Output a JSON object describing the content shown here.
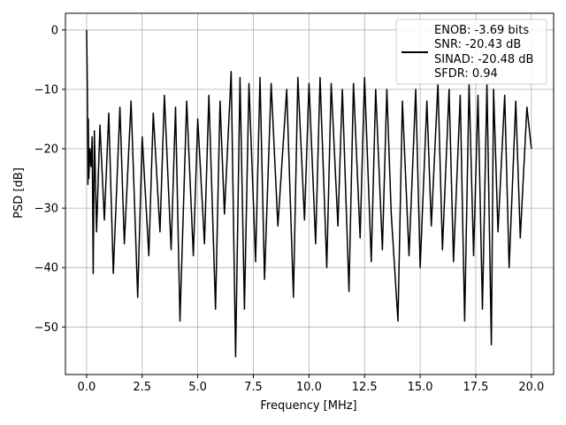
{
  "chart_data": {
    "type": "line",
    "xlabel": "Frequency [MHz]",
    "ylabel": "PSD [dB]",
    "xlim": [
      -0.95,
      21.0
    ],
    "ylim": [
      -58.0,
      2.8
    ],
    "xticks": [
      0.0,
      2.5,
      5.0,
      7.5,
      10.0,
      12.5,
      15.0,
      17.5,
      20.0
    ],
    "xtick_labels": [
      "0.0",
      "2.5",
      "5.0",
      "7.5",
      "10.0",
      "12.5",
      "15.0",
      "17.5",
      "20.0"
    ],
    "yticks": [
      0,
      -10,
      -20,
      -30,
      -40,
      -50
    ],
    "ytick_labels": [
      "0",
      "−10",
      "−20",
      "−30",
      "−40",
      "−50"
    ],
    "grid": true,
    "legend_position": "top-right",
    "legend_lines": [
      "ENOB: -3.69 bits",
      "SNR: -20.43 dB",
      "SINAD: -20.48 dB",
      "SFDR: 0.94"
    ],
    "series_color": "#000000",
    "grid_color": "#b0b0b0",
    "series": [
      {
        "x": [
          0.0,
          0.02,
          0.04,
          0.06,
          0.08,
          0.1,
          0.15,
          0.2,
          0.25,
          0.3,
          0.35,
          0.45,
          0.6,
          0.8,
          1.0,
          1.2,
          1.5,
          1.7,
          2.0,
          2.3,
          2.5,
          2.8,
          3.0,
          3.3,
          3.5,
          3.8,
          4.0,
          4.2,
          4.5,
          4.8,
          5.0,
          5.3,
          5.5,
          5.8,
          6.0,
          6.2,
          6.5,
          6.7,
          6.9,
          7.1,
          7.3,
          7.6,
          7.8,
          8.0,
          8.3,
          8.6,
          9.0,
          9.3,
          9.5,
          9.8,
          10.0,
          10.3,
          10.5,
          10.8,
          11.0,
          11.3,
          11.5,
          11.8,
          12.0,
          12.3,
          12.5,
          12.8,
          13.0,
          13.3,
          13.5,
          13.7,
          14.0,
          14.2,
          14.5,
          14.8,
          15.0,
          15.3,
          15.5,
          15.8,
          16.0,
          16.3,
          16.5,
          16.8,
          17.0,
          17.2,
          17.4,
          17.6,
          17.8,
          18.0,
          18.2,
          18.3,
          18.5,
          18.8,
          19.0,
          19.3,
          19.5,
          19.8,
          20.0
        ],
        "y": [
          0,
          -5,
          -12,
          -26,
          -15,
          -25,
          -20,
          -23,
          -18,
          -41,
          -17,
          -34,
          -16,
          -32,
          -14,
          -41,
          -13,
          -36,
          -12,
          -45,
          -18,
          -38,
          -14,
          -34,
          -11,
          -37,
          -13,
          -49,
          -12,
          -38,
          -15,
          -36,
          -11,
          -47,
          -12,
          -31,
          -7,
          -55,
          -8,
          -47,
          -9,
          -39,
          -8,
          -42,
          -9,
          -33,
          -10,
          -45,
          -8,
          -32,
          -9,
          -36,
          -8,
          -40,
          -9,
          -33,
          -10,
          -44,
          -9,
          -35,
          -8,
          -39,
          -10,
          -37,
          -10,
          -31,
          -49,
          -12,
          -38,
          -10,
          -40,
          -12,
          -33,
          -9,
          -37,
          -10,
          -39,
          -11,
          -49,
          -9,
          -38,
          -11,
          -47,
          -9,
          -53,
          -10,
          -34,
          -11,
          -40,
          -12,
          -35,
          -13,
          -20
        ]
      }
    ]
  }
}
